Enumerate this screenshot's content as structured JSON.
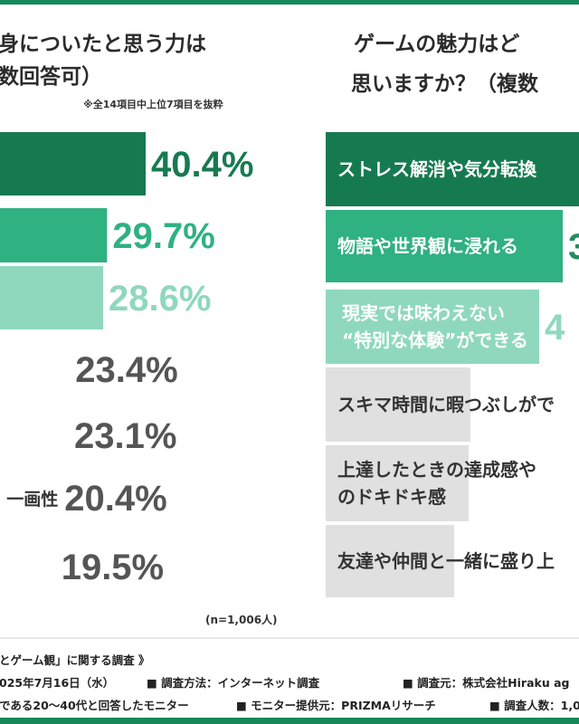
{
  "left_panel": {
    "title_line1": "身についたと思う力は",
    "title_line2": "数回答可）",
    "note": "※全14項目中上位7項目を抜粋",
    "sample_size": "(n=1,006人)"
  },
  "right_panel": {
    "title_line1": "ゲームの魅力はど",
    "title_line2": "思いますか？（複数"
  },
  "chart_data": [
    {
      "type": "bar",
      "orientation": "horizontal",
      "categories": [
        "",
        "",
        "",
        "",
        "",
        "一画性",
        ""
      ],
      "values": [
        40.4,
        29.7,
        28.6,
        23.4,
        23.1,
        20.4,
        19.5
      ],
      "value_labels": [
        "40.4%",
        "29.7%",
        "28.6%",
        "23.4%",
        "23.1%",
        "20.4%",
        "19.5%"
      ],
      "xlim": [
        0,
        100
      ],
      "colors": [
        "#167a50",
        "#2fb182",
        "#8fd8bd",
        "#ffffff",
        "#ffffff",
        "#ffffff",
        "#ffffff"
      ],
      "label_colors": [
        "#167a50",
        "#2fb182",
        "#8fd8bd",
        "#555555",
        "#555555",
        "#555555",
        "#555555"
      ]
    },
    {
      "type": "bar",
      "orientation": "horizontal",
      "categories": [
        "ストレス解消や気分転換",
        "物語や世界観に浸れる",
        "現実では味わえない “特別な体験”ができる",
        "スキマ時間に暇つぶしがで",
        "上達したときの達成感や のドキドキ感",
        "友達や仲間と一緒に盛り上"
      ],
      "value_labels": [
        "",
        "3",
        "4",
        "",
        "",
        ""
      ],
      "colors": [
        "#167a50",
        "#2fb182",
        "#8fd8bd",
        "#e0e0e0",
        "#e0e0e0",
        "#e0e0e0"
      ]
    }
  ],
  "survey": {
    "title": "とゲーム観」に関する調査 》",
    "line1": [
      "025年7月16日（水）",
      "■ 調査方法：インターネット調査",
      "■ 調査元：株式会社Hiraku ag"
    ],
    "line2": [
      "である20〜40代と回答したモニター",
      "■ モニター提供元：PRIZMAリサーチ",
      "■ 調査人数：1,0"
    ]
  }
}
